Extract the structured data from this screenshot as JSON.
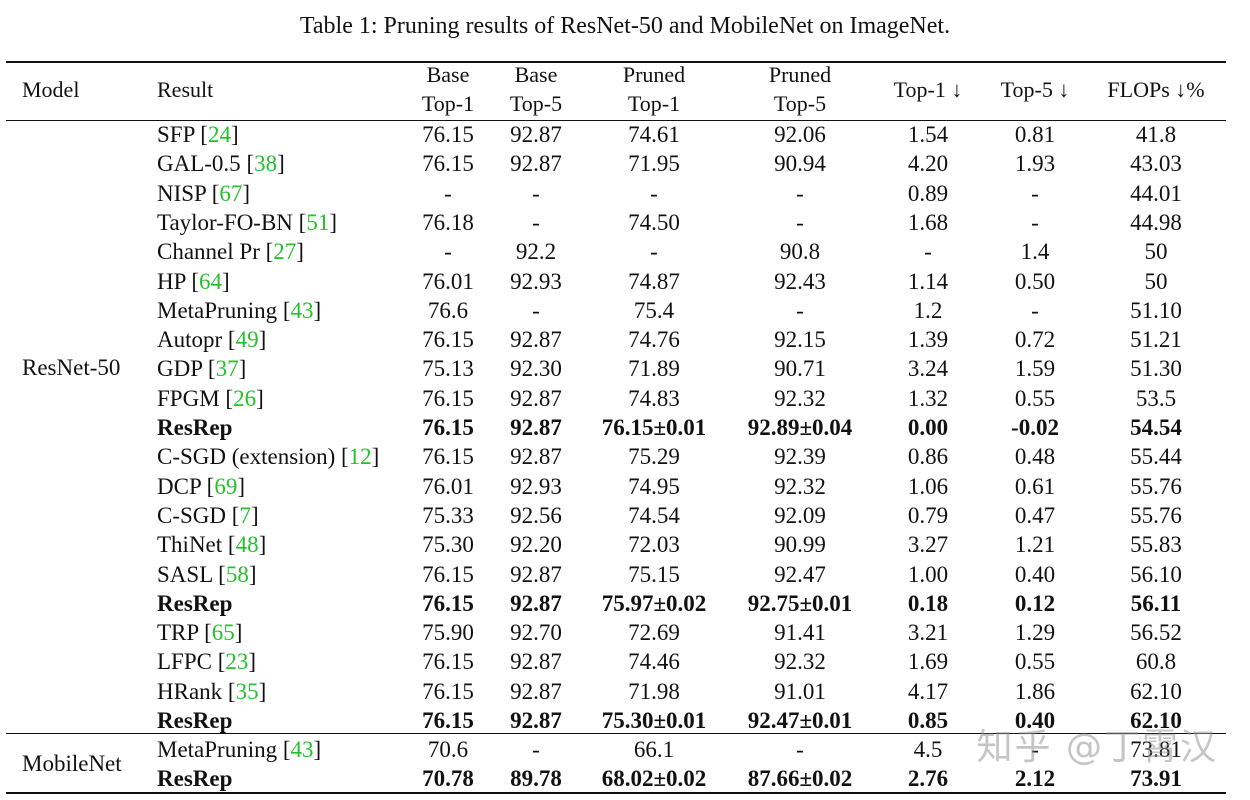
{
  "caption": "Table 1: Pruning results of ResNet-50 and MobileNet on ImageNet.",
  "headers": {
    "model": "Model",
    "result": "Result",
    "base_top1": [
      "Base",
      "Top-1"
    ],
    "base_top5": [
      "Base",
      "Top-5"
    ],
    "pruned_top1": [
      "Pruned",
      "Top-1"
    ],
    "pruned_top5": [
      "Pruned",
      "Top-5"
    ],
    "top1_drop": "Top-1 ↓",
    "top5_drop": "Top-5 ↓",
    "flops": "FLOPs ↓%"
  },
  "groups": [
    {
      "model": "ResNet-50",
      "rows": [
        {
          "method": "SFP",
          "cite": "24",
          "base_top1": "76.15",
          "base_top5": "92.87",
          "pruned_top1": "74.61",
          "pruned_top5": "92.06",
          "top1_drop": "1.54",
          "top5_drop": "0.81",
          "flops": "41.8",
          "bold": false
        },
        {
          "method": "GAL-0.5",
          "cite": "38",
          "base_top1": "76.15",
          "base_top5": "92.87",
          "pruned_top1": "71.95",
          "pruned_top5": "90.94",
          "top1_drop": "4.20",
          "top5_drop": "1.93",
          "flops": "43.03",
          "bold": false
        },
        {
          "method": "NISP",
          "cite": "67",
          "base_top1": "-",
          "base_top5": "-",
          "pruned_top1": "-",
          "pruned_top5": "-",
          "top1_drop": "0.89",
          "top5_drop": "-",
          "flops": "44.01",
          "bold": false
        },
        {
          "method": "Taylor-FO-BN",
          "cite": "51",
          "base_top1": "76.18",
          "base_top5": "-",
          "pruned_top1": "74.50",
          "pruned_top5": "-",
          "top1_drop": "1.68",
          "top5_drop": "-",
          "flops": "44.98",
          "bold": false
        },
        {
          "method": "Channel Pr",
          "cite": "27",
          "base_top1": "-",
          "base_top5": "92.2",
          "pruned_top1": "-",
          "pruned_top5": "90.8",
          "top1_drop": "-",
          "top5_drop": "1.4",
          "flops": "50",
          "bold": false
        },
        {
          "method": "HP",
          "cite": "64",
          "base_top1": "76.01",
          "base_top5": "92.93",
          "pruned_top1": "74.87",
          "pruned_top5": "92.43",
          "top1_drop": "1.14",
          "top5_drop": "0.50",
          "flops": "50",
          "bold": false
        },
        {
          "method": "MetaPruning",
          "cite": "43",
          "base_top1": "76.6",
          "base_top5": "-",
          "pruned_top1": "75.4",
          "pruned_top5": "-",
          "top1_drop": "1.2",
          "top5_drop": "-",
          "flops": "51.10",
          "bold": false
        },
        {
          "method": "Autopr",
          "cite": "49",
          "base_top1": "76.15",
          "base_top5": "92.87",
          "pruned_top1": "74.76",
          "pruned_top5": "92.15",
          "top1_drop": "1.39",
          "top5_drop": "0.72",
          "flops": "51.21",
          "bold": false
        },
        {
          "method": "GDP",
          "cite": "37",
          "base_top1": "75.13",
          "base_top5": "92.30",
          "pruned_top1": "71.89",
          "pruned_top5": "90.71",
          "top1_drop": "3.24",
          "top5_drop": "1.59",
          "flops": "51.30",
          "bold": false
        },
        {
          "method": "FPGM",
          "cite": "26",
          "base_top1": "76.15",
          "base_top5": "92.87",
          "pruned_top1": "74.83",
          "pruned_top5": "92.32",
          "top1_drop": "1.32",
          "top5_drop": "0.55",
          "flops": "53.5",
          "bold": false
        },
        {
          "method": "ResRep",
          "cite": "",
          "base_top1": "76.15",
          "base_top5": "92.87",
          "pruned_top1": "76.15±0.01",
          "pruned_top5": "92.89±0.04",
          "top1_drop": "0.00",
          "top5_drop": "-0.02",
          "flops": "54.54",
          "bold": true
        },
        {
          "method": "C-SGD (extension)",
          "cite": "12",
          "base_top1": "76.15",
          "base_top5": "92.87",
          "pruned_top1": "75.29",
          "pruned_top5": "92.39",
          "top1_drop": "0.86",
          "top5_drop": "0.48",
          "flops": "55.44",
          "bold": false
        },
        {
          "method": "DCP",
          "cite": "69",
          "base_top1": "76.01",
          "base_top5": "92.93",
          "pruned_top1": "74.95",
          "pruned_top5": "92.32",
          "top1_drop": "1.06",
          "top5_drop": "0.61",
          "flops": "55.76",
          "bold": false
        },
        {
          "method": "C-SGD",
          "cite": "7",
          "base_top1": "75.33",
          "base_top5": "92.56",
          "pruned_top1": "74.54",
          "pruned_top5": "92.09",
          "top1_drop": "0.79",
          "top5_drop": "0.47",
          "flops": "55.76",
          "bold": false
        },
        {
          "method": "ThiNet",
          "cite": "48",
          "base_top1": "75.30",
          "base_top5": "92.20",
          "pruned_top1": "72.03",
          "pruned_top5": "90.99",
          "top1_drop": "3.27",
          "top5_drop": "1.21",
          "flops": "55.83",
          "bold": false
        },
        {
          "method": "SASL",
          "cite": "58",
          "base_top1": "76.15",
          "base_top5": "92.87",
          "pruned_top1": "75.15",
          "pruned_top5": "92.47",
          "top1_drop": "1.00",
          "top5_drop": "0.40",
          "flops": "56.10",
          "bold": false
        },
        {
          "method": "ResRep",
          "cite": "",
          "base_top1": "76.15",
          "base_top5": "92.87",
          "pruned_top1": "75.97±0.02",
          "pruned_top5": "92.75±0.01",
          "top1_drop": "0.18",
          "top5_drop": "0.12",
          "flops": "56.11",
          "bold": true
        },
        {
          "method": "TRP",
          "cite": "65",
          "base_top1": "75.90",
          "base_top5": "92.70",
          "pruned_top1": "72.69",
          "pruned_top5": "91.41",
          "top1_drop": "3.21",
          "top5_drop": "1.29",
          "flops": "56.52",
          "bold": false
        },
        {
          "method": "LFPC",
          "cite": "23",
          "base_top1": "76.15",
          "base_top5": "92.87",
          "pruned_top1": "74.46",
          "pruned_top5": "92.32",
          "top1_drop": "1.69",
          "top5_drop": "0.55",
          "flops": "60.8",
          "bold": false
        },
        {
          "method": "HRank",
          "cite": "35",
          "base_top1": "76.15",
          "base_top5": "92.87",
          "pruned_top1": "71.98",
          "pruned_top5": "91.01",
          "top1_drop": "4.17",
          "top5_drop": "1.86",
          "flops": "62.10",
          "bold": false
        },
        {
          "method": "ResRep",
          "cite": "",
          "base_top1": "76.15",
          "base_top5": "92.87",
          "pruned_top1": "75.30±0.01",
          "pruned_top5": "92.47±0.01",
          "top1_drop": "0.85",
          "top5_drop": "0.40",
          "flops": "62.10",
          "bold": true
        }
      ]
    },
    {
      "model": "MobileNet",
      "rows": [
        {
          "method": "MetaPruning",
          "cite": "43",
          "base_top1": "70.6",
          "base_top5": "-",
          "pruned_top1": "66.1",
          "pruned_top5": "-",
          "top1_drop": "4.5",
          "top5_drop": "-",
          "flops": "73.81",
          "bold": false
        },
        {
          "method": "ResRep",
          "cite": "",
          "base_top1": "70.78",
          "base_top5": "89.78",
          "pruned_top1": "68.02±0.02",
          "pruned_top5": "87.66±0.02",
          "top1_drop": "2.76",
          "top5_drop": "2.12",
          "flops": "73.91",
          "bold": true
        }
      ]
    }
  ],
  "watermark": "知乎 @丁霄汉"
}
